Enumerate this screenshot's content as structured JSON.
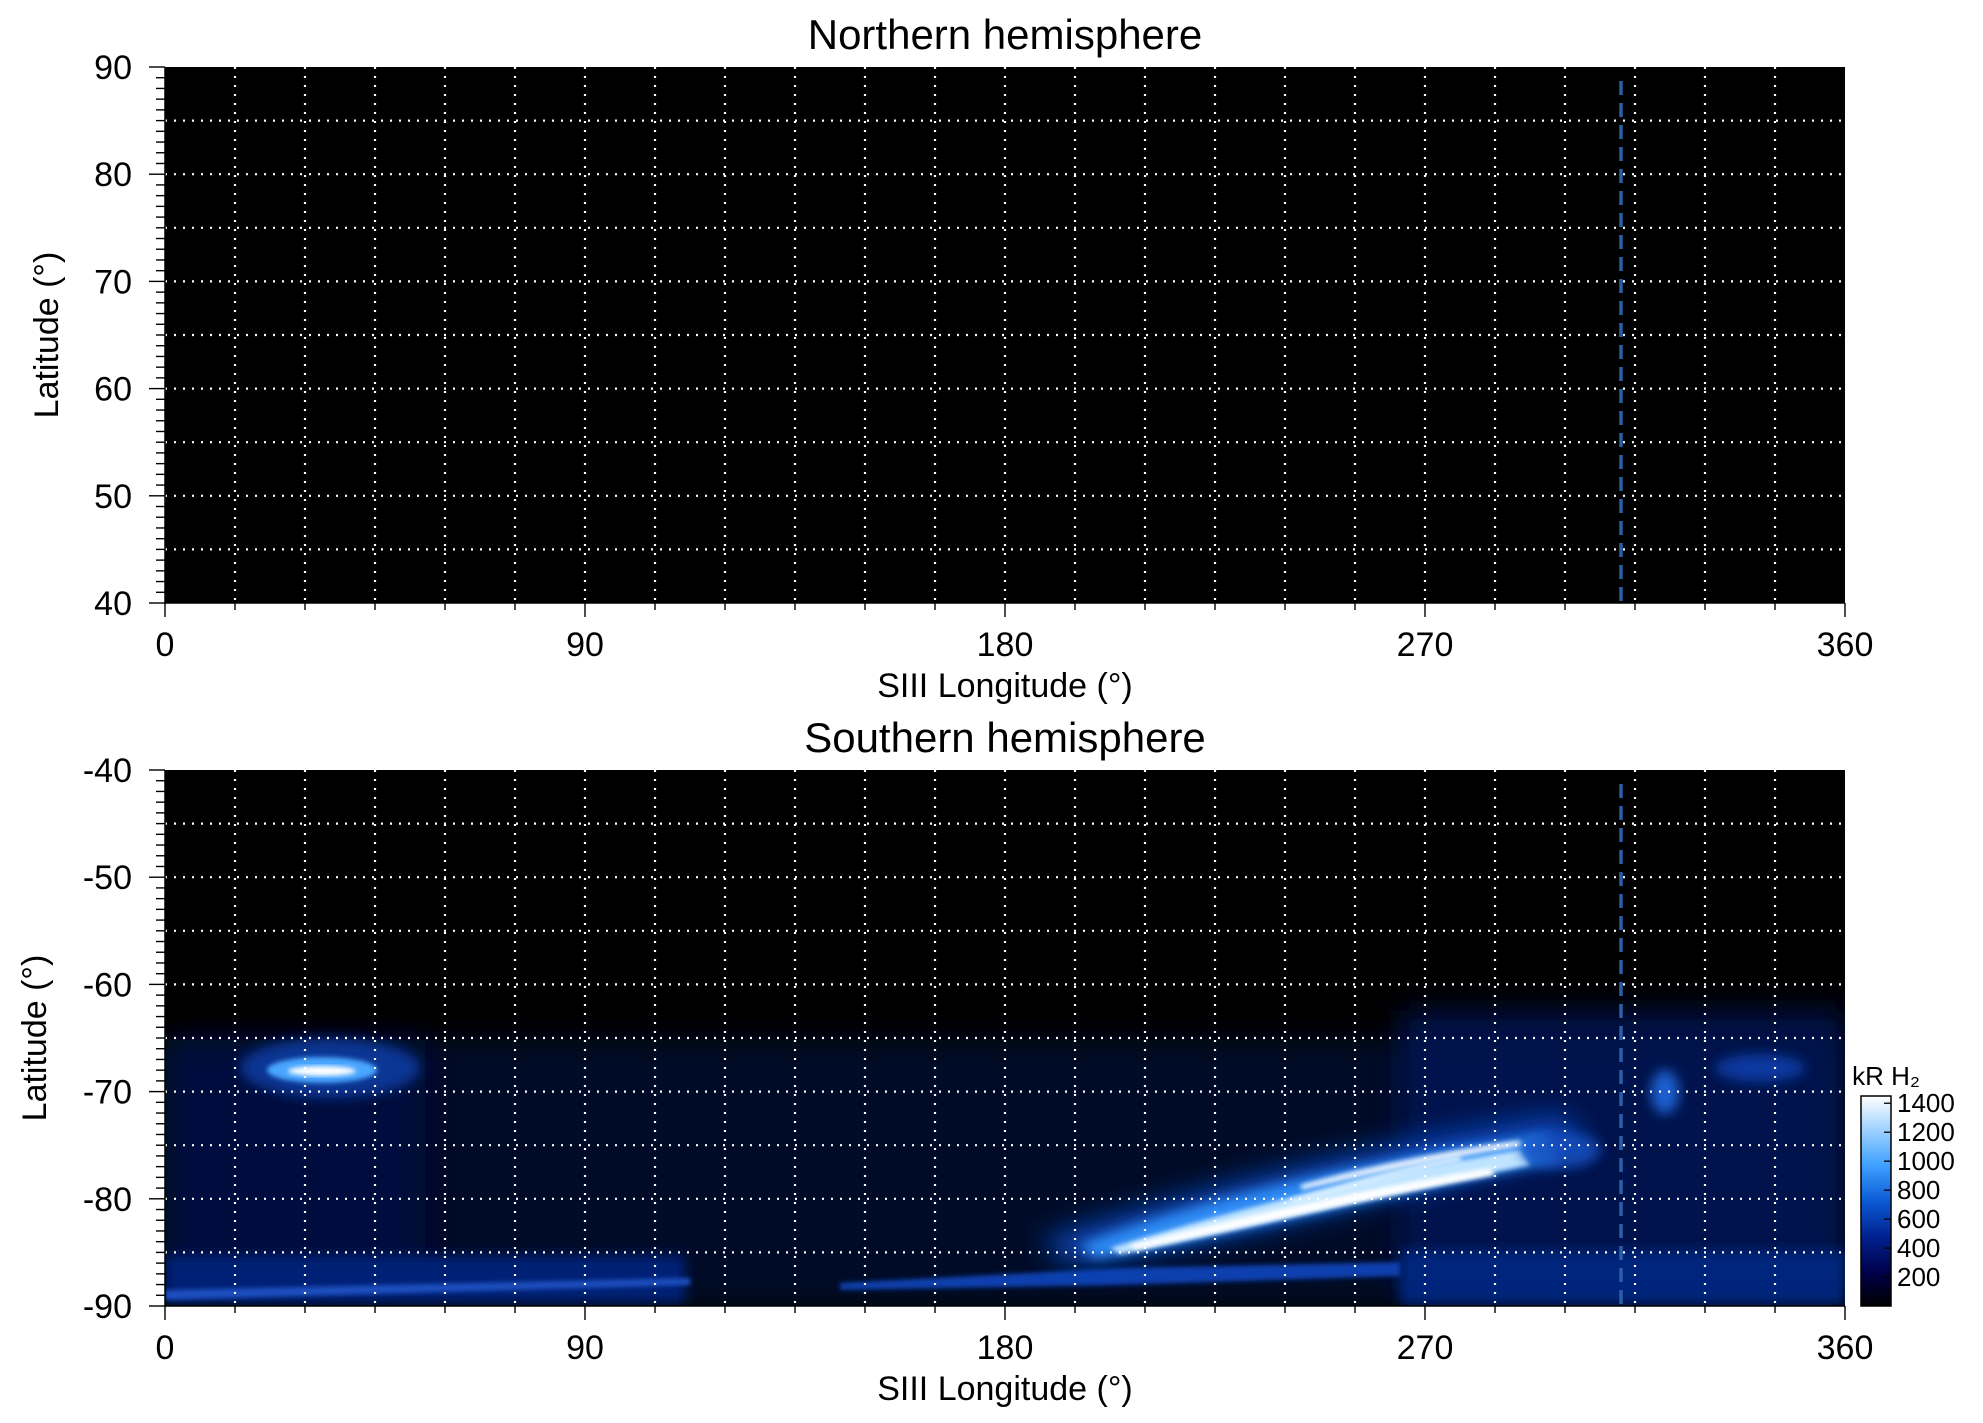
{
  "chart_data": [
    {
      "type": "heatmap",
      "title": "Northern hemisphere",
      "xlabel": "SIII Longitude (°)",
      "ylabel": "Latitude (°)",
      "xlim": [
        0,
        360
      ],
      "ylim": [
        40,
        90
      ],
      "xticks": [
        "0",
        "90",
        "180",
        "270",
        "360"
      ],
      "yticks": [
        "40",
        "50",
        "60",
        "70",
        "80",
        "90"
      ],
      "grid": true,
      "grid_style": "white dotted",
      "background": "#000000",
      "reference_line": {
        "longitude": 312,
        "style": "dashed",
        "color": "#2a5fa8"
      },
      "emission_regions": []
    },
    {
      "type": "heatmap",
      "title": "Southern hemisphere",
      "xlabel": "SIII Longitude (°)",
      "ylabel": "Latitude (°)",
      "xlim": [
        0,
        360
      ],
      "ylim": [
        -90,
        -40
      ],
      "xticks": [
        "0",
        "90",
        "180",
        "270",
        "360"
      ],
      "yticks": [
        "-40",
        "-50",
        "-60",
        "-70",
        "-80",
        "-90"
      ],
      "grid": true,
      "grid_style": "white dotted",
      "background": "#000000",
      "reference_line": {
        "longitude": 312,
        "style": "dashed",
        "color": "#2a5fa8"
      },
      "emission_regions": [
        {
          "feature": "main auroral oval arc",
          "lon_range": [
            195,
            300
          ],
          "lat_range": [
            -85,
            -76
          ],
          "peak_kR": 1400
        },
        {
          "feature": "isolated spot",
          "lon_range": [
            25,
            45
          ],
          "lat_range": [
            -70,
            -66
          ],
          "peak_kR": 1400
        },
        {
          "feature": "diffuse band near pole",
          "lon_range": [
            0,
            360
          ],
          "lat_range": [
            -90,
            -85
          ],
          "peak_kR": 500
        },
        {
          "feature": "faint patches",
          "lon_range": [
            310,
            360
          ],
          "lat_range": [
            -75,
            -65
          ],
          "peak_kR": 350
        }
      ],
      "colorbar": {
        "label": "kR H₂",
        "ticks": [
          "200",
          "400",
          "600",
          "800",
          "1000",
          "1200",
          "1400"
        ],
        "range": [
          0,
          1450
        ],
        "colors": [
          "#000000",
          "#00004a",
          "#00218f",
          "#0b5bd6",
          "#3fa0ff",
          "#9fd2ff",
          "#ffffff"
        ]
      }
    }
  ]
}
